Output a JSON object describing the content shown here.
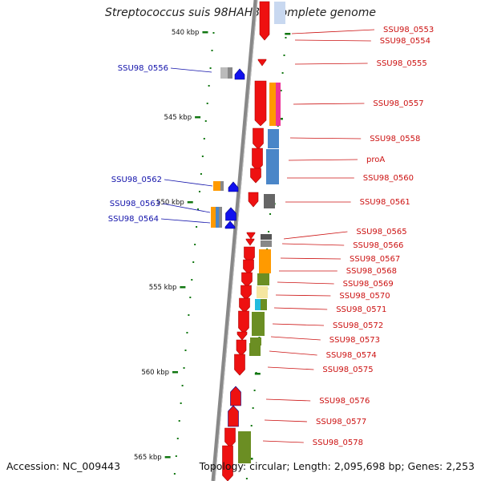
{
  "title": "Streptococcus suis 98HAH33, complete genome",
  "footer": {
    "accession": "Accession: NC_009443",
    "summary": "Topology: circular; Length: 2,095,698 bp; Genes: 2,253"
  },
  "ticks": [
    "540 kbp",
    "545 kbp",
    "550 kbp",
    "555 kbp",
    "560 kbp",
    "565 kbp"
  ],
  "left_labels": [
    "SSU98_0556",
    "SSU98_0562",
    "SSU98_0563",
    "SSU98_0564"
  ],
  "right_labels": [
    "SSU98_0553",
    "SSU98_0554",
    "SSU98_0555",
    "SSU98_0557",
    "SSU98_0558",
    "proA",
    "SSU98_0560",
    "SSU98_0561",
    "SSU98_0565",
    "SSU98_0566",
    "SSU98_0567",
    "SSU98_0568",
    "SSU98_0569",
    "SSU98_0570",
    "SSU98_0571",
    "SSU98_0572",
    "SSU98_0573",
    "SSU98_0574",
    "SSU98_0575",
    "SSU98_0576",
    "SSU98_0577",
    "SSU98_0578"
  ],
  "colors": {
    "plus_strand": "#ee1111",
    "minus_strand": "#1111ee",
    "backbone": "#888888",
    "tick": "#117711",
    "left_label": "#1111aa",
    "right_label": "#cc1111"
  }
}
